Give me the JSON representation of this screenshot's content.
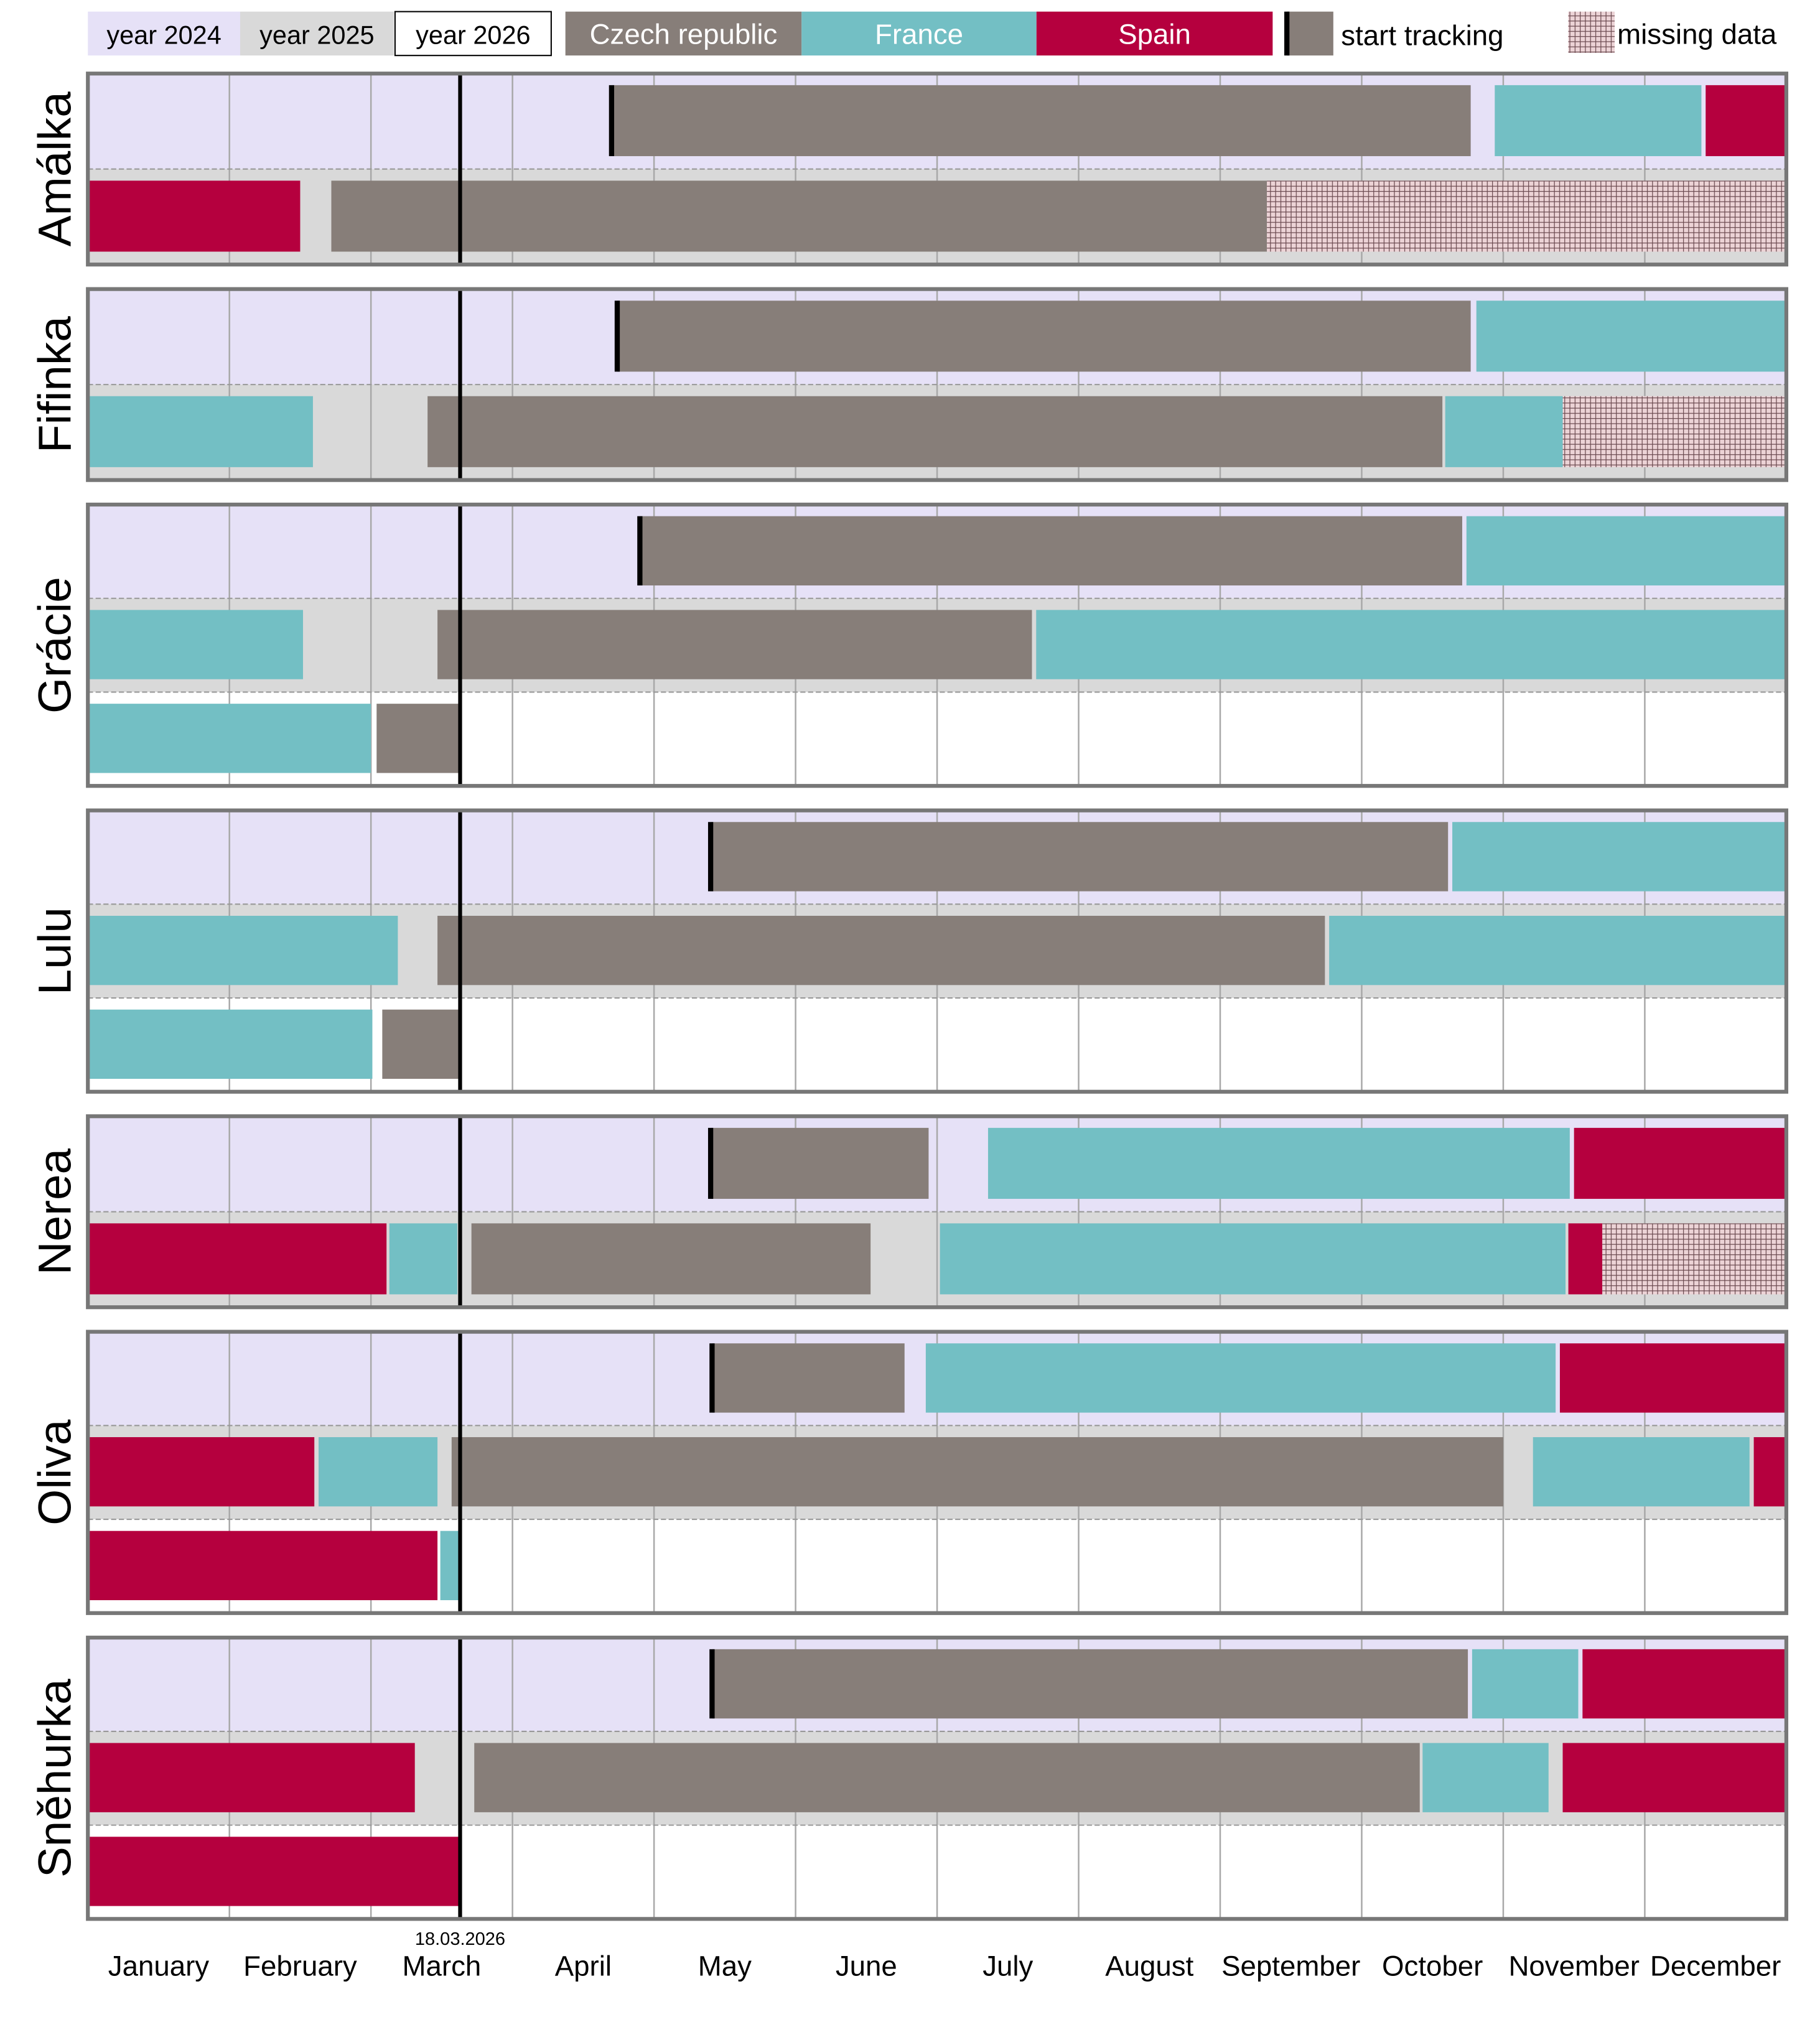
{
  "chart_data": {
    "type": "gantt",
    "x_unit": "months from January 1 (0 = Jan 1, 12 = Dec 31)",
    "xlim": [
      0,
      12
    ],
    "months": [
      "January",
      "February",
      "March",
      "April",
      "May",
      "June",
      "July",
      "August",
      "September",
      "October",
      "November",
      "December"
    ],
    "today": {
      "label": "18.03.2026",
      "value": 2.63
    },
    "colors": {
      "year2024": "#e6e1f7",
      "year2025": "#d9d9d9",
      "year2026": "#ffffff",
      "czech": "#877e79",
      "france": "#73bfc4",
      "spain": "#b5003e",
      "missing": "#e8c8cc",
      "tracking": "#000000"
    },
    "legend": {
      "placement": "top",
      "items": [
        {
          "key": "year2024",
          "label": "year 2024"
        },
        {
          "key": "year2025",
          "label": "year 2025"
        },
        {
          "key": "year2026",
          "label": "year 2026"
        },
        {
          "key": "czech",
          "label": "Czech republic"
        },
        {
          "key": "france",
          "label": "France"
        },
        {
          "key": "spain",
          "label": "Spain"
        },
        {
          "key": "tracking",
          "label": "start tracking"
        },
        {
          "key": "missing",
          "label": "missing data"
        }
      ]
    },
    "animals": [
      {
        "name": "Amálka",
        "rows": [
          {
            "year": 2024,
            "tracking": 3.7,
            "segments": [
              [
                "czech",
                3.7,
                9.77
              ],
              [
                "france",
                9.94,
                11.4
              ],
              [
                "spain",
                11.43,
                12
              ]
            ]
          },
          {
            "year": 2025,
            "segments": [
              [
                "spain",
                0,
                1.5
              ],
              [
                "czech",
                1.72,
                8.33
              ],
              [
                "missing",
                8.33,
                12
              ]
            ]
          }
        ]
      },
      {
        "name": "Fifinka",
        "rows": [
          {
            "year": 2024,
            "tracking": 3.74,
            "segments": [
              [
                "czech",
                3.74,
                9.77
              ],
              [
                "france",
                9.81,
                12
              ]
            ]
          },
          {
            "year": 2025,
            "segments": [
              [
                "france",
                0,
                1.59
              ],
              [
                "czech",
                2.4,
                9.57
              ],
              [
                "france",
                9.59,
                10.42
              ],
              [
                "missing",
                10.42,
                12
              ]
            ]
          }
        ]
      },
      {
        "name": "Grácie",
        "rows": [
          {
            "year": 2024,
            "tracking": 3.9,
            "segments": [
              [
                "czech",
                3.9,
                9.71
              ],
              [
                "france",
                9.74,
                12
              ]
            ]
          },
          {
            "year": 2025,
            "segments": [
              [
                "france",
                0,
                1.52
              ],
              [
                "czech",
                2.47,
                6.67
              ],
              [
                "france",
                6.7,
                12
              ]
            ]
          },
          {
            "year": 2026,
            "segments": [
              [
                "france",
                0,
                2.0
              ],
              [
                "czech",
                2.04,
                2.63
              ]
            ]
          }
        ]
      },
      {
        "name": "Lulu",
        "rows": [
          {
            "year": 2024,
            "tracking": 4.4,
            "segments": [
              [
                "czech",
                4.4,
                9.61
              ],
              [
                "france",
                9.64,
                12
              ]
            ]
          },
          {
            "year": 2025,
            "segments": [
              [
                "france",
                0,
                2.19
              ],
              [
                "czech",
                2.47,
                8.74
              ],
              [
                "france",
                8.77,
                12
              ]
            ]
          },
          {
            "year": 2026,
            "segments": [
              [
                "france",
                0,
                2.01
              ],
              [
                "czech",
                2.08,
                2.63
              ]
            ]
          }
        ]
      },
      {
        "name": "Nerea",
        "rows": [
          {
            "year": 2024,
            "tracking": 4.4,
            "segments": [
              [
                "czech",
                4.4,
                5.94
              ],
              [
                "france",
                6.36,
                10.47
              ],
              [
                "spain",
                10.5,
                12
              ]
            ]
          },
          {
            "year": 2025,
            "segments": [
              [
                "spain",
                0,
                2.11
              ],
              [
                "france",
                2.13,
                2.61
              ],
              [
                "czech",
                2.71,
                5.53
              ],
              [
                "france",
                6.02,
                10.44
              ],
              [
                "spain",
                10.46,
                10.7
              ],
              [
                "missing",
                10.7,
                12
              ]
            ]
          }
        ]
      },
      {
        "name": "Oliva",
        "rows": [
          {
            "year": 2024,
            "tracking": 4.41,
            "segments": [
              [
                "czech",
                4.41,
                5.77
              ],
              [
                "france",
                5.92,
                10.37
              ],
              [
                "spain",
                10.4,
                12
              ]
            ]
          },
          {
            "year": 2025,
            "segments": [
              [
                "spain",
                0,
                1.6
              ],
              [
                "france",
                1.63,
                2.47
              ],
              [
                "czech",
                2.57,
                10.0
              ],
              [
                "france",
                10.21,
                11.74
              ],
              [
                "spain",
                11.77,
                12
              ]
            ]
          },
          {
            "year": 2026,
            "segments": [
              [
                "spain",
                0,
                2.47
              ],
              [
                "france",
                2.49,
                2.63
              ]
            ]
          }
        ]
      },
      {
        "name": "Sněhurka",
        "rows": [
          {
            "year": 2024,
            "tracking": 4.41,
            "segments": [
              [
                "czech",
                4.41,
                9.75
              ],
              [
                "france",
                9.78,
                10.53
              ],
              [
                "spain",
                10.56,
                12
              ]
            ]
          },
          {
            "year": 2025,
            "segments": [
              [
                "spain",
                0,
                2.31
              ],
              [
                "czech",
                2.73,
                9.41
              ],
              [
                "france",
                9.43,
                10.32
              ],
              [
                "spain",
                10.42,
                12
              ]
            ]
          },
          {
            "year": 2026,
            "segments": [
              [
                "spain",
                0,
                2.63
              ]
            ]
          }
        ]
      }
    ]
  }
}
